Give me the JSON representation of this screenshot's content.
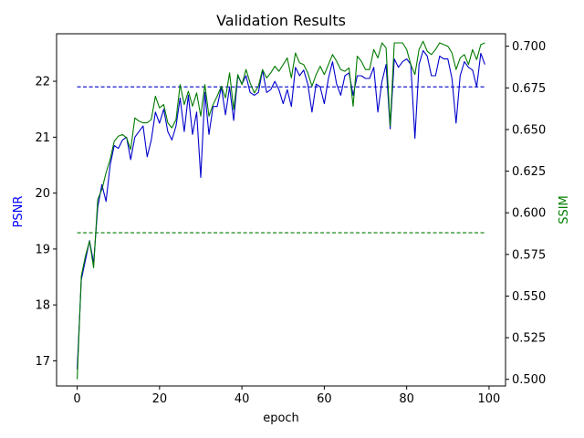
{
  "chart_data": {
    "type": "line",
    "title": "Validation Results",
    "xlabel": "epoch",
    "ylabel_left": "PSNR",
    "ylabel_right": "SSIM",
    "xlim": [
      -5,
      104
    ],
    "ylim_left": [
      16.55,
      22.85
    ],
    "ylim_right": [
      0.496,
      0.7075
    ],
    "x_ticks": [
      "0",
      "20",
      "40",
      "60",
      "80",
      "100"
    ],
    "x_tick_values": [
      0,
      20,
      40,
      60,
      80,
      100
    ],
    "y_left_ticks": [
      "17",
      "18",
      "19",
      "20",
      "21",
      "22"
    ],
    "y_left_tick_values": [
      17,
      18,
      19,
      20,
      21,
      22
    ],
    "y_right_ticks": [
      "0.500",
      "0.525",
      "0.550",
      "0.575",
      "0.600",
      "0.625",
      "0.650",
      "0.675",
      "0.700"
    ],
    "y_right_tick_values": [
      0.5,
      0.525,
      0.55,
      0.575,
      0.6,
      0.625,
      0.65,
      0.675,
      0.7
    ],
    "grid": false,
    "colors": {
      "psnr": "#0000cc",
      "ssim": "#007a00"
    },
    "x": [
      0,
      1,
      2,
      3,
      4,
      5,
      6,
      7,
      8,
      9,
      10,
      11,
      12,
      13,
      14,
      15,
      16,
      17,
      18,
      19,
      20,
      21,
      22,
      23,
      24,
      25,
      26,
      27,
      28,
      29,
      30,
      31,
      32,
      33,
      34,
      35,
      36,
      37,
      38,
      39,
      40,
      41,
      42,
      43,
      44,
      45,
      46,
      47,
      48,
      49,
      50,
      51,
      52,
      53,
      54,
      55,
      56,
      57,
      58,
      59,
      60,
      61,
      62,
      63,
      64,
      65,
      66,
      67,
      68,
      69,
      70,
      71,
      72,
      73,
      74,
      75,
      76,
      77,
      78,
      79,
      80,
      81,
      82,
      83,
      84,
      85,
      86,
      87,
      88,
      89,
      90,
      91,
      92,
      93,
      94,
      95,
      96,
      97,
      98,
      99
    ],
    "series": [
      {
        "axis": "left",
        "color": "#0000cc",
        "values": [
          16.85,
          18.45,
          18.8,
          19.15,
          18.75,
          19.75,
          20.15,
          19.85,
          20.5,
          20.85,
          20.8,
          20.95,
          21.0,
          20.6,
          21.0,
          21.1,
          21.2,
          20.65,
          20.95,
          21.45,
          21.25,
          21.5,
          21.1,
          20.95,
          21.2,
          21.7,
          21.1,
          21.75,
          21.05,
          21.45,
          20.28,
          21.8,
          21.05,
          21.55,
          21.55,
          21.9,
          21.4,
          21.9,
          21.3,
          22.1,
          21.95,
          22.1,
          21.8,
          21.75,
          21.8,
          22.2,
          21.8,
          21.85,
          22.0,
          21.85,
          21.6,
          21.85,
          21.55,
          22.25,
          22.1,
          22.2,
          21.95,
          21.45,
          21.95,
          21.9,
          21.6,
          22.05,
          22.35,
          21.95,
          21.75,
          22.1,
          22.15,
          21.75,
          22.1,
          22.1,
          22.05,
          22.05,
          22.25,
          21.45,
          22.0,
          22.3,
          21.15,
          22.4,
          22.25,
          22.35,
          22.4,
          22.3,
          20.98,
          22.3,
          22.55,
          22.45,
          22.1,
          22.1,
          22.45,
          22.4,
          22.4,
          22.05,
          21.25,
          22.1,
          22.35,
          22.25,
          22.2,
          21.9,
          22.5,
          22.3
        ]
      },
      {
        "axis": "right",
        "color": "#007a00",
        "values": [
          0.5,
          0.562,
          0.574,
          0.583,
          0.567,
          0.608,
          0.614,
          0.624,
          0.632,
          0.643,
          0.646,
          0.647,
          0.645,
          0.638,
          0.657,
          0.655,
          0.654,
          0.654,
          0.656,
          0.67,
          0.663,
          0.665,
          0.654,
          0.651,
          0.656,
          0.677,
          0.665,
          0.673,
          0.664,
          0.672,
          0.658,
          0.677,
          0.658,
          0.665,
          0.67,
          0.676,
          0.669,
          0.684,
          0.662,
          0.683,
          0.677,
          0.686,
          0.678,
          0.672,
          0.676,
          0.686,
          0.681,
          0.684,
          0.688,
          0.685,
          0.689,
          0.693,
          0.681,
          0.696,
          0.69,
          0.689,
          0.684,
          0.676,
          0.683,
          0.688,
          0.683,
          0.689,
          0.695,
          0.691,
          0.686,
          0.685,
          0.687,
          0.664,
          0.694,
          0.691,
          0.686,
          0.686,
          0.698,
          0.693,
          0.702,
          0.699,
          0.652,
          0.702,
          0.702,
          0.702,
          0.698,
          0.689,
          0.683,
          0.698,
          0.703,
          0.697,
          0.695,
          0.698,
          0.702,
          0.701,
          0.7,
          0.696,
          0.686,
          0.693,
          0.695,
          0.689,
          0.698,
          0.692,
          0.701,
          0.702
        ]
      }
    ],
    "reference_lines": [
      {
        "axis": "left",
        "value": 21.9,
        "color": "#0000cc",
        "style": "dashed"
      },
      {
        "axis": "right",
        "value": 0.588,
        "color": "#007a00",
        "style": "dashed"
      }
    ]
  }
}
